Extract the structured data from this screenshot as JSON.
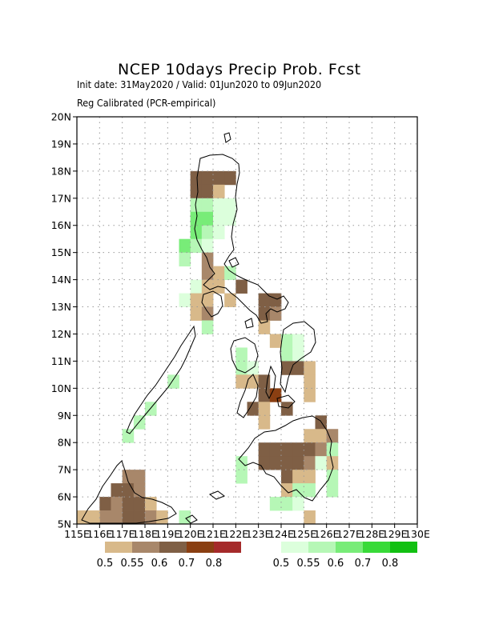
{
  "title": "NCEP 10days Precip Prob. Fcst",
  "init_line": "Init date: 31May2020 / Valid: 01Jun2020 to 09Jun2020",
  "calib_line": "Reg Calibrated (PCR-empirical)",
  "map": {
    "lon_range": [
      115,
      130
    ],
    "lat_range": [
      5,
      20
    ],
    "lon_ticks": [
      {
        "value": 115,
        "label": "115E"
      },
      {
        "value": 116,
        "label": "116E"
      },
      {
        "value": 117,
        "label": "117E"
      },
      {
        "value": 118,
        "label": "118E"
      },
      {
        "value": 119,
        "label": "119E"
      },
      {
        "value": 120,
        "label": "120E"
      },
      {
        "value": 121,
        "label": "121E"
      },
      {
        "value": 122,
        "label": "122E"
      },
      {
        "value": 123,
        "label": "123E"
      },
      {
        "value": 124,
        "label": "124E"
      },
      {
        "value": 125,
        "label": "125E"
      },
      {
        "value": 126,
        "label": "126E"
      },
      {
        "value": 127,
        "label": "127E"
      },
      {
        "value": 128,
        "label": "128E"
      },
      {
        "value": 129,
        "label": "129E"
      },
      {
        "value": 130,
        "label": "130E"
      }
    ],
    "lat_ticks": [
      {
        "value": 5,
        "label": "5N"
      },
      {
        "value": 6,
        "label": "6N"
      },
      {
        "value": 7,
        "label": "7N"
      },
      {
        "value": 8,
        "label": "8N"
      },
      {
        "value": 9,
        "label": "9N"
      },
      {
        "value": 10,
        "label": "10N"
      },
      {
        "value": 11,
        "label": "11N"
      },
      {
        "value": 12,
        "label": "12N"
      },
      {
        "value": 13,
        "label": "13N"
      },
      {
        "value": 14,
        "label": "14N"
      },
      {
        "value": 15,
        "label": "15N"
      },
      {
        "value": 16,
        "label": "16N"
      },
      {
        "value": 17,
        "label": "17N"
      },
      {
        "value": 18,
        "label": "18N"
      },
      {
        "value": 19,
        "label": "19N"
      },
      {
        "value": 20,
        "label": "20N"
      }
    ],
    "grid": true,
    "dry_colors": [
      "#d8b98a",
      "#a8876a",
      "#7f5f45",
      "#8a3f12",
      "#a52a2a"
    ],
    "wet_colors": [
      "#dcffdc",
      "#b6f7b6",
      "#78ec78",
      "#38da38",
      "#12c012"
    ],
    "cells": [
      {
        "lon": 120.25,
        "lat": 17.75,
        "cat": "dry",
        "level": 2
      },
      {
        "lon": 120.75,
        "lat": 17.75,
        "cat": "dry",
        "level": 2
      },
      {
        "lon": 121.25,
        "lat": 17.75,
        "cat": "dry",
        "level": 2
      },
      {
        "lon": 121.75,
        "lat": 17.75,
        "cat": "dry",
        "level": 2
      },
      {
        "lon": 120.25,
        "lat": 17.25,
        "cat": "dry",
        "level": 2
      },
      {
        "lon": 120.75,
        "lat": 17.25,
        "cat": "dry",
        "level": 2
      },
      {
        "lon": 121.25,
        "lat": 17.25,
        "cat": "dry",
        "level": 0
      },
      {
        "lon": 120.25,
        "lat": 16.75,
        "cat": "wet",
        "level": 1
      },
      {
        "lon": 120.75,
        "lat": 16.75,
        "cat": "wet",
        "level": 1
      },
      {
        "lon": 121.25,
        "lat": 16.75,
        "cat": "wet",
        "level": 0
      },
      {
        "lon": 121.75,
        "lat": 16.75,
        "cat": "wet",
        "level": 0
      },
      {
        "lon": 120.25,
        "lat": 16.25,
        "cat": "wet",
        "level": 2
      },
      {
        "lon": 120.75,
        "lat": 16.25,
        "cat": "wet",
        "level": 2
      },
      {
        "lon": 121.25,
        "lat": 16.25,
        "cat": "wet",
        "level": 0
      },
      {
        "lon": 121.75,
        "lat": 16.25,
        "cat": "wet",
        "level": 0
      },
      {
        "lon": 120.25,
        "lat": 15.75,
        "cat": "wet",
        "level": 2
      },
      {
        "lon": 120.75,
        "lat": 15.75,
        "cat": "wet",
        "level": 1
      },
      {
        "lon": 121.25,
        "lat": 15.75,
        "cat": "wet",
        "level": 0
      },
      {
        "lon": 119.75,
        "lat": 15.25,
        "cat": "wet",
        "level": 2
      },
      {
        "lon": 120.25,
        "lat": 15.25,
        "cat": "wet",
        "level": 1
      },
      {
        "lon": 120.75,
        "lat": 15.25,
        "cat": "wet",
        "level": 0
      },
      {
        "lon": 119.75,
        "lat": 14.75,
        "cat": "wet",
        "level": 1
      },
      {
        "lon": 120.75,
        "lat": 14.75,
        "cat": "dry",
        "level": 1
      },
      {
        "lon": 120.75,
        "lat": 14.25,
        "cat": "dry",
        "level": 1
      },
      {
        "lon": 121.25,
        "lat": 14.25,
        "cat": "dry",
        "level": 0
      },
      {
        "lon": 121.75,
        "lat": 14.25,
        "cat": "wet",
        "level": 1
      },
      {
        "lon": 120.25,
        "lat": 13.75,
        "cat": "wet",
        "level": 0
      },
      {
        "lon": 120.75,
        "lat": 13.75,
        "cat": "dry",
        "level": 0
      },
      {
        "lon": 121.25,
        "lat": 13.75,
        "cat": "dry",
        "level": 0
      },
      {
        "lon": 122.25,
        "lat": 13.75,
        "cat": "dry",
        "level": 2
      },
      {
        "lon": 119.75,
        "lat": 13.25,
        "cat": "wet",
        "level": 0
      },
      {
        "lon": 120.25,
        "lat": 13.25,
        "cat": "dry",
        "level": 0
      },
      {
        "lon": 120.75,
        "lat": 13.25,
        "cat": "dry",
        "level": 0
      },
      {
        "lon": 121.75,
        "lat": 13.25,
        "cat": "dry",
        "level": 0
      },
      {
        "lon": 123.25,
        "lat": 13.25,
        "cat": "dry",
        "level": 2
      },
      {
        "lon": 123.75,
        "lat": 13.25,
        "cat": "dry",
        "level": 2
      },
      {
        "lon": 120.25,
        "lat": 12.75,
        "cat": "dry",
        "level": 0
      },
      {
        "lon": 120.75,
        "lat": 12.75,
        "cat": "dry",
        "level": 1
      },
      {
        "lon": 123.25,
        "lat": 12.75,
        "cat": "dry",
        "level": 2
      },
      {
        "lon": 123.75,
        "lat": 12.75,
        "cat": "dry",
        "level": 1
      },
      {
        "lon": 120.75,
        "lat": 12.25,
        "cat": "wet",
        "level": 1
      },
      {
        "lon": 123.25,
        "lat": 12.25,
        "cat": "dry",
        "level": 0
      },
      {
        "lon": 123.75,
        "lat": 11.75,
        "cat": "dry",
        "level": 0
      },
      {
        "lon": 124.25,
        "lat": 11.75,
        "cat": "wet",
        "level": 1
      },
      {
        "lon": 124.75,
        "lat": 11.75,
        "cat": "wet",
        "level": 0
      },
      {
        "lon": 122.25,
        "lat": 11.25,
        "cat": "wet",
        "level": 1
      },
      {
        "lon": 124.25,
        "lat": 11.25,
        "cat": "wet",
        "level": 1
      },
      {
        "lon": 124.75,
        "lat": 11.25,
        "cat": "wet",
        "level": 0
      },
      {
        "lon": 122.25,
        "lat": 10.75,
        "cat": "wet",
        "level": 1
      },
      {
        "lon": 122.75,
        "lat": 10.75,
        "cat": "wet",
        "level": 0
      },
      {
        "lon": 124.25,
        "lat": 10.75,
        "cat": "dry",
        "level": 2
      },
      {
        "lon": 124.75,
        "lat": 10.75,
        "cat": "dry",
        "level": 2
      },
      {
        "lon": 125.25,
        "lat": 10.75,
        "cat": "dry",
        "level": 0
      },
      {
        "lon": 122.25,
        "lat": 10.25,
        "cat": "dry",
        "level": 0
      },
      {
        "lon": 122.75,
        "lat": 10.25,
        "cat": "dry",
        "level": 0
      },
      {
        "lon": 123.25,
        "lat": 10.25,
        "cat": "dry",
        "level": 2
      },
      {
        "lon": 125.25,
        "lat": 10.25,
        "cat": "dry",
        "level": 0
      },
      {
        "lon": 123.25,
        "lat": 9.75,
        "cat": "dry",
        "level": 2
      },
      {
        "lon": 123.75,
        "lat": 9.75,
        "cat": "dry",
        "level": 3
      },
      {
        "lon": 125.25,
        "lat": 9.75,
        "cat": "dry",
        "level": 0
      },
      {
        "lon": 122.75,
        "lat": 9.25,
        "cat": "dry",
        "level": 2
      },
      {
        "lon": 123.25,
        "lat": 9.25,
        "cat": "dry",
        "level": 0
      },
      {
        "lon": 124.25,
        "lat": 9.25,
        "cat": "dry",
        "level": 2
      },
      {
        "lon": 123.25,
        "lat": 8.75,
        "cat": "dry",
        "level": 0
      },
      {
        "lon": 125.75,
        "lat": 8.75,
        "cat": "dry",
        "level": 2
      },
      {
        "lon": 125.25,
        "lat": 8.25,
        "cat": "dry",
        "level": 0
      },
      {
        "lon": 125.75,
        "lat": 8.25,
        "cat": "dry",
        "level": 0
      },
      {
        "lon": 126.25,
        "lat": 8.25,
        "cat": "dry",
        "level": 1
      },
      {
        "lon": 123.25,
        "lat": 7.75,
        "cat": "dry",
        "level": 2
      },
      {
        "lon": 123.75,
        "lat": 7.75,
        "cat": "dry",
        "level": 2
      },
      {
        "lon": 124.25,
        "lat": 7.75,
        "cat": "dry",
        "level": 2
      },
      {
        "lon": 124.75,
        "lat": 7.75,
        "cat": "dry",
        "level": 2
      },
      {
        "lon": 125.25,
        "lat": 7.75,
        "cat": "dry",
        "level": 2
      },
      {
        "lon": 125.75,
        "lat": 7.75,
        "cat": "dry",
        "level": 1
      },
      {
        "lon": 126.25,
        "lat": 7.75,
        "cat": "wet",
        "level": 1
      },
      {
        "lon": 122.25,
        "lat": 7.25,
        "cat": "wet",
        "level": 1
      },
      {
        "lon": 123.25,
        "lat": 7.25,
        "cat": "dry",
        "level": 2
      },
      {
        "lon": 123.75,
        "lat": 7.25,
        "cat": "dry",
        "level": 2
      },
      {
        "lon": 124.25,
        "lat": 7.25,
        "cat": "dry",
        "level": 2
      },
      {
        "lon": 124.75,
        "lat": 7.25,
        "cat": "dry",
        "level": 2
      },
      {
        "lon": 125.25,
        "lat": 7.25,
        "cat": "dry",
        "level": 1
      },
      {
        "lon": 125.75,
        "lat": 7.25,
        "cat": "wet",
        "level": 0
      },
      {
        "lon": 126.25,
        "lat": 7.25,
        "cat": "dry",
        "level": 0
      },
      {
        "lon": 122.25,
        "lat": 6.75,
        "cat": "wet",
        "level": 1
      },
      {
        "lon": 124.25,
        "lat": 6.75,
        "cat": "dry",
        "level": 2
      },
      {
        "lon": 124.75,
        "lat": 6.75,
        "cat": "dry",
        "level": 0
      },
      {
        "lon": 125.25,
        "lat": 6.75,
        "cat": "dry",
        "level": 0
      },
      {
        "lon": 126.25,
        "lat": 6.75,
        "cat": "wet",
        "level": 1
      },
      {
        "lon": 124.25,
        "lat": 6.25,
        "cat": "dry",
        "level": 0
      },
      {
        "lon": 124.75,
        "lat": 6.25,
        "cat": "wet",
        "level": 1
      },
      {
        "lon": 125.25,
        "lat": 6.25,
        "cat": "wet",
        "level": 1
      },
      {
        "lon": 126.25,
        "lat": 6.25,
        "cat": "wet",
        "level": 1
      },
      {
        "lon": 123.75,
        "lat": 5.75,
        "cat": "wet",
        "level": 1
      },
      {
        "lon": 124.25,
        "lat": 5.75,
        "cat": "wet",
        "level": 1
      },
      {
        "lon": 124.75,
        "lat": 5.75,
        "cat": "wet",
        "level": 0
      },
      {
        "lon": 125.25,
        "lat": 5.25,
        "cat": "dry",
        "level": 0
      },
      {
        "lon": 117.25,
        "lat": 6.75,
        "cat": "dry",
        "level": 1
      },
      {
        "lon": 117.75,
        "lat": 6.75,
        "cat": "dry",
        "level": 1
      },
      {
        "lon": 116.75,
        "lat": 6.25,
        "cat": "dry",
        "level": 2
      },
      {
        "lon": 117.25,
        "lat": 6.25,
        "cat": "dry",
        "level": 2
      },
      {
        "lon": 117.75,
        "lat": 6.25,
        "cat": "dry",
        "level": 1
      },
      {
        "lon": 116.25,
        "lat": 5.75,
        "cat": "dry",
        "level": 2
      },
      {
        "lon": 116.75,
        "lat": 5.75,
        "cat": "dry",
        "level": 1
      },
      {
        "lon": 117.25,
        "lat": 5.75,
        "cat": "dry",
        "level": 2
      },
      {
        "lon": 117.75,
        "lat": 5.75,
        "cat": "dry",
        "level": 2
      },
      {
        "lon": 118.25,
        "lat": 5.75,
        "cat": "dry",
        "level": 0
      },
      {
        "lon": 116.25,
        "lat": 5.25,
        "cat": "dry",
        "level": 1
      },
      {
        "lon": 116.75,
        "lat": 5.25,
        "cat": "dry",
        "level": 1
      },
      {
        "lon": 117.25,
        "lat": 5.25,
        "cat": "dry",
        "level": 2
      },
      {
        "lon": 117.75,
        "lat": 5.25,
        "cat": "dry",
        "level": 2
      },
      {
        "lon": 118.25,
        "lat": 5.25,
        "cat": "dry",
        "level": 1
      },
      {
        "lon": 118.75,
        "lat": 5.25,
        "cat": "dry",
        "level": 0
      },
      {
        "lon": 115.25,
        "lat": 5.25,
        "cat": "dry",
        "level": 0
      },
      {
        "lon": 115.75,
        "lat": 5.25,
        "cat": "dry",
        "level": 0
      },
      {
        "lon": 119.25,
        "lat": 10.25,
        "cat": "wet",
        "level": 1
      },
      {
        "lon": 118.25,
        "lat": 9.25,
        "cat": "wet",
        "level": 1
      },
      {
        "lon": 117.75,
        "lat": 8.75,
        "cat": "wet",
        "level": 1
      },
      {
        "lon": 117.25,
        "lat": 8.25,
        "cat": "wet",
        "level": 1
      },
      {
        "lon": 119.75,
        "lat": 5.25,
        "cat": "wet",
        "level": 1
      }
    ]
  },
  "legend": {
    "dry_labels": [
      "0.5",
      "0.55",
      "0.6",
      "0.7",
      "0.8"
    ],
    "wet_labels": [
      "0.5",
      "0.55",
      "0.6",
      "0.7",
      "0.8"
    ]
  }
}
